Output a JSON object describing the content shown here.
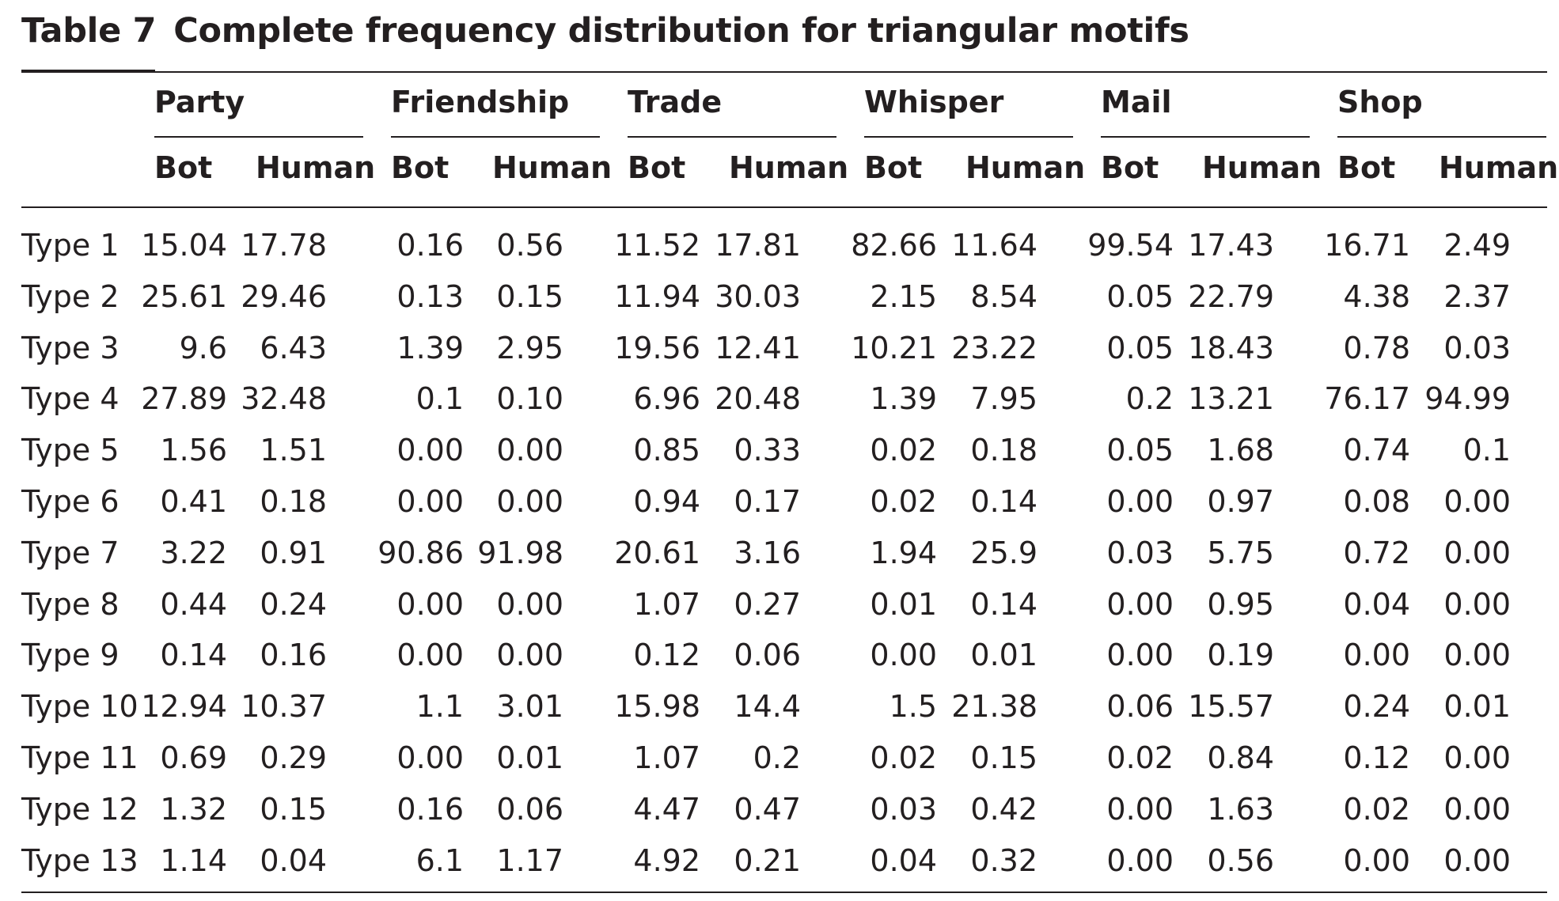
{
  "table": {
    "caption_label": "Table 7",
    "caption_title": "Complete frequency distribution for triangular motifs",
    "groups": [
      "Party",
      "Friendship",
      "Trade",
      "Whisper",
      "Mail",
      "Shop"
    ],
    "subheaders": [
      "Bot",
      "Human"
    ],
    "rows": [
      {
        "label": "Type 1",
        "values": [
          "15.04",
          "17.78",
          "0.16",
          "0.56",
          "11.52",
          "17.81",
          "82.66",
          "11.64",
          "99.54",
          "17.43",
          "16.71",
          "2.49"
        ]
      },
      {
        "label": "Type 2",
        "values": [
          "25.61",
          "29.46",
          "0.13",
          "0.15",
          "11.94",
          "30.03",
          "2.15",
          "8.54",
          "0.05",
          "22.79",
          "4.38",
          "2.37"
        ]
      },
      {
        "label": "Type 3",
        "values": [
          "9.6",
          "6.43",
          "1.39",
          "2.95",
          "19.56",
          "12.41",
          "10.21",
          "23.22",
          "0.05",
          "18.43",
          "0.78",
          "0.03"
        ]
      },
      {
        "label": "Type 4",
        "values": [
          "27.89",
          "32.48",
          "0.1",
          "0.10",
          "6.96",
          "20.48",
          "1.39",
          "7.95",
          "0.2",
          "13.21",
          "76.17",
          "94.99"
        ]
      },
      {
        "label": "Type 5",
        "values": [
          "1.56",
          "1.51",
          "0.00",
          "0.00",
          "0.85",
          "0.33",
          "0.02",
          "0.18",
          "0.05",
          "1.68",
          "0.74",
          "0.1"
        ]
      },
      {
        "label": "Type 6",
        "values": [
          "0.41",
          "0.18",
          "0.00",
          "0.00",
          "0.94",
          "0.17",
          "0.02",
          "0.14",
          "0.00",
          "0.97",
          "0.08",
          "0.00"
        ]
      },
      {
        "label": "Type 7",
        "values": [
          "3.22",
          "0.91",
          "90.86",
          "91.98",
          "20.61",
          "3.16",
          "1.94",
          "25.9",
          "0.03",
          "5.75",
          "0.72",
          "0.00"
        ]
      },
      {
        "label": "Type 8",
        "values": [
          "0.44",
          "0.24",
          "0.00",
          "0.00",
          "1.07",
          "0.27",
          "0.01",
          "0.14",
          "0.00",
          "0.95",
          "0.04",
          "0.00"
        ]
      },
      {
        "label": "Type 9",
        "values": [
          "0.14",
          "0.16",
          "0.00",
          "0.00",
          "0.12",
          "0.06",
          "0.00",
          "0.01",
          "0.00",
          "0.19",
          "0.00",
          "0.00"
        ]
      },
      {
        "label": "Type 10",
        "values": [
          "12.94",
          "10.37",
          "1.1",
          "3.01",
          "15.98",
          "14.4",
          "1.5",
          "21.38",
          "0.06",
          "15.57",
          "0.24",
          "0.01"
        ]
      },
      {
        "label": "Type 11",
        "values": [
          "0.69",
          "0.29",
          "0.00",
          "0.01",
          "1.07",
          "0.2",
          "0.02",
          "0.15",
          "0.02",
          "0.84",
          "0.12",
          "0.00"
        ]
      },
      {
        "label": "Type 12",
        "values": [
          "1.32",
          "0.15",
          "0.16",
          "0.06",
          "4.47",
          "0.47",
          "0.03",
          "0.42",
          "0.00",
          "1.63",
          "0.02",
          "0.00"
        ]
      },
      {
        "label": "Type 13",
        "values": [
          "1.14",
          "0.04",
          "6.1",
          "1.17",
          "4.92",
          "0.21",
          "0.04",
          "0.32",
          "0.00",
          "0.56",
          "0.00",
          "0.00"
        ]
      }
    ]
  }
}
